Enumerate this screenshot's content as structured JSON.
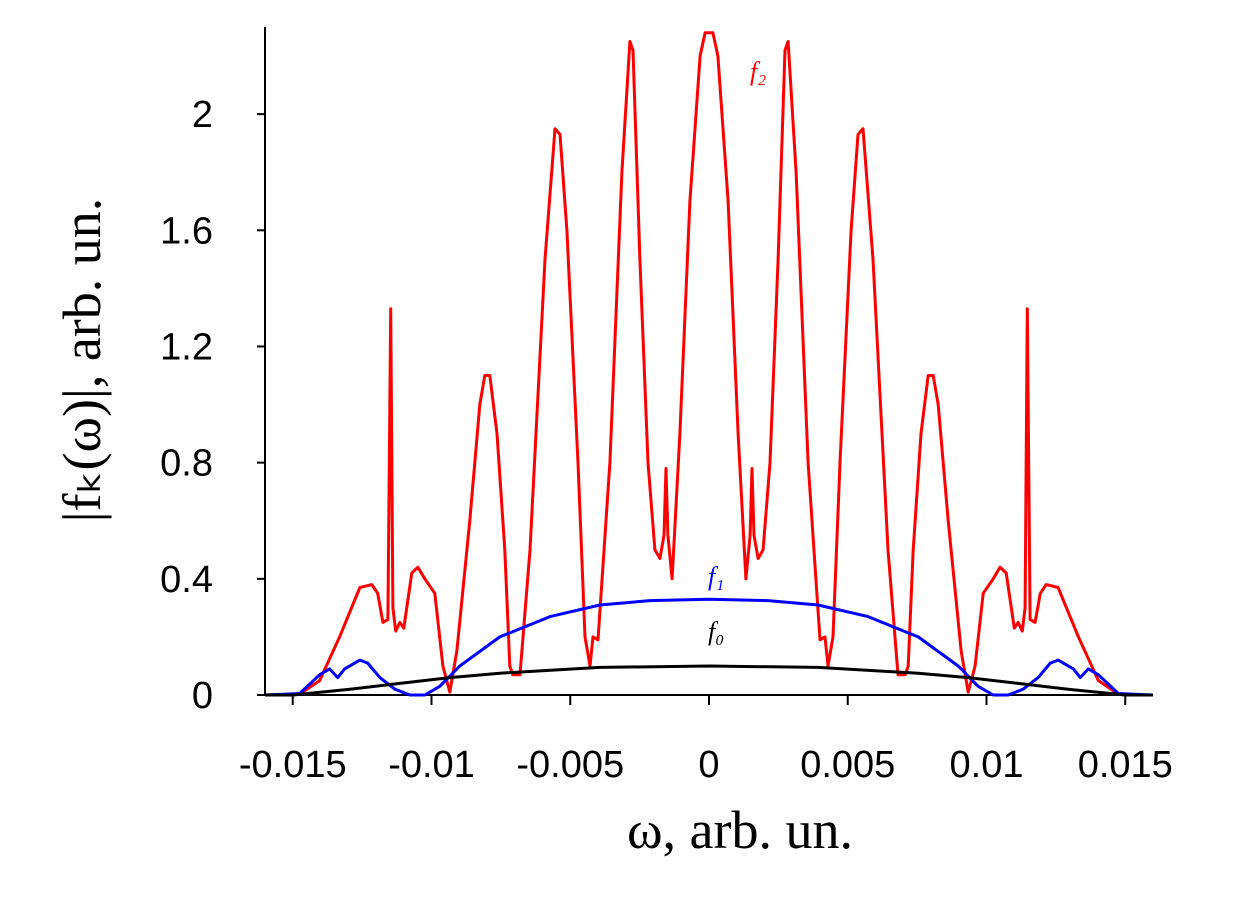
{
  "chart_data": {
    "type": "line",
    "x_label": "ω, arb. un.",
    "y_label": "|fₖ(ω)|, arb. un.",
    "xlim": [
      -0.016,
      0.016
    ],
    "ylim": [
      0,
      2.3
    ],
    "xticks": [
      -0.015,
      -0.01,
      -0.005,
      0,
      0.005,
      0.01,
      0.015
    ],
    "yticks": [
      0,
      0.4,
      0.8,
      1.2,
      1.6,
      2
    ],
    "grid": false,
    "series": [
      {
        "name": "f₂",
        "color": "#ff0000",
        "x": [
          -0.016,
          -0.015,
          -0.01475,
          -0.01403,
          -0.01331,
          -0.01258,
          -0.01215,
          -0.01194,
          -0.01175,
          -0.01157,
          -0.01147,
          -0.01139,
          -0.01129,
          -0.01114,
          -0.011,
          -0.01071,
          -0.01049,
          -0.01024,
          -0.00988,
          -0.00959,
          -0.00934,
          -0.00909,
          -0.00862,
          -0.00826,
          -0.00808,
          -0.0079,
          -0.00764,
          -0.00736,
          -0.00718,
          -0.00707,
          -0.00681,
          -0.00645,
          -0.00591,
          -0.00555,
          -0.00537,
          -0.00512,
          -0.00472,
          -0.00447,
          -0.00429,
          -0.00418,
          -0.004,
          -0.00357,
          -0.00314,
          -0.00285,
          -0.00274,
          -0.00249,
          -0.0022,
          -0.00195,
          -0.00177,
          -0.00162,
          -0.00155,
          -0.00148,
          -0.00133,
          -0.00105,
          -0.00069,
          -0.00032,
          -0.00014,
          0,
          0.00014,
          0.00032,
          0.00069,
          0.00105,
          0.00133,
          0.00148,
          0.00155,
          0.00162,
          0.00177,
          0.00195,
          0.0022,
          0.00249,
          0.00274,
          0.00285,
          0.00314,
          0.00357,
          0.004,
          0.00418,
          0.00429,
          0.00447,
          0.00472,
          0.00512,
          0.00537,
          0.00555,
          0.00591,
          0.00645,
          0.00681,
          0.00707,
          0.00718,
          0.00736,
          0.00764,
          0.0079,
          0.00808,
          0.00826,
          0.00862,
          0.00909,
          0.00934,
          0.00959,
          0.00988,
          0.01024,
          0.01049,
          0.01071,
          0.011,
          0.01114,
          0.01129,
          0.01139,
          0.01147,
          0.01157,
          0.01175,
          0.01194,
          0.01215,
          0.01258,
          0.01331,
          0.01403,
          0.01475,
          0.015,
          0.016
        ],
        "values": [
          0,
          0,
          0.003,
          0.05,
          0.2,
          0.37,
          0.38,
          0.35,
          0.25,
          0.26,
          1.33,
          0.3,
          0.22,
          0.25,
          0.23,
          0.42,
          0.44,
          0.4,
          0.35,
          0.1,
          0.01,
          0.15,
          0.6,
          1.0,
          1.1,
          1.1,
          0.9,
          0.5,
          0.1,
          0.07,
          0.07,
          0.5,
          1.5,
          1.95,
          1.93,
          1.6,
          0.8,
          0.2,
          0.1,
          0.2,
          0.19,
          0.8,
          1.8,
          2.25,
          2.22,
          1.5,
          0.8,
          0.5,
          0.47,
          0.55,
          0.78,
          0.55,
          0.4,
          0.9,
          1.7,
          2.2,
          2.28,
          2.28,
          2.28,
          2.2,
          1.7,
          0.9,
          0.4,
          0.55,
          0.78,
          0.55,
          0.47,
          0.5,
          0.8,
          1.5,
          2.22,
          2.25,
          1.8,
          0.8,
          0.19,
          0.2,
          0.1,
          0.2,
          0.8,
          1.6,
          1.93,
          1.95,
          1.5,
          0.5,
          0.07,
          0.07,
          0.1,
          0.5,
          0.9,
          1.1,
          1.1,
          1.0,
          0.6,
          0.15,
          0.01,
          0.1,
          0.35,
          0.4,
          0.44,
          0.42,
          0.23,
          0.25,
          0.22,
          0.3,
          1.33,
          0.26,
          0.25,
          0.35,
          0.38,
          0.37,
          0.2,
          0.05,
          0.003,
          0,
          0
        ]
      },
      {
        "name": "f₁",
        "color": "#0000ff",
        "x": [
          -0.016,
          -0.01475,
          -0.01403,
          -0.01367,
          -0.01338,
          -0.01313,
          -0.01258,
          -0.0123,
          -0.01186,
          -0.01132,
          -0.01078,
          -0.01024,
          -0.0097,
          -0.00898,
          -0.00754,
          -0.00573,
          -0.00393,
          -0.00213,
          0,
          0.00213,
          0.00393,
          0.00573,
          0.00754,
          0.00898,
          0.0097,
          0.01024,
          0.01078,
          0.01132,
          0.01186,
          0.0123,
          0.01258,
          0.01313,
          0.01338,
          0.01367,
          0.01403,
          0.01475,
          0.016
        ],
        "values": [
          0,
          0.005,
          0.07,
          0.09,
          0.06,
          0.09,
          0.12,
          0.11,
          0.06,
          0.02,
          0,
          0,
          0.03,
          0.1,
          0.2,
          0.27,
          0.31,
          0.325,
          0.33,
          0.325,
          0.31,
          0.27,
          0.2,
          0.1,
          0.03,
          0,
          0,
          0.02,
          0.06,
          0.11,
          0.12,
          0.09,
          0.06,
          0.09,
          0.07,
          0.005,
          0
        ]
      },
      {
        "name": "f₀",
        "color": "#000000",
        "x": [
          -0.016,
          -0.015,
          -0.01294,
          -0.01114,
          -0.00934,
          -0.00754,
          -0.00393,
          0,
          0.00393,
          0.00754,
          0.00934,
          0.01114,
          0.01294,
          0.015,
          0.016
        ],
        "values": [
          0,
          0,
          0.02,
          0.04,
          0.06,
          0.075,
          0.095,
          0.1,
          0.095,
          0.075,
          0.06,
          0.04,
          0.02,
          0,
          0
        ]
      }
    ]
  }
}
